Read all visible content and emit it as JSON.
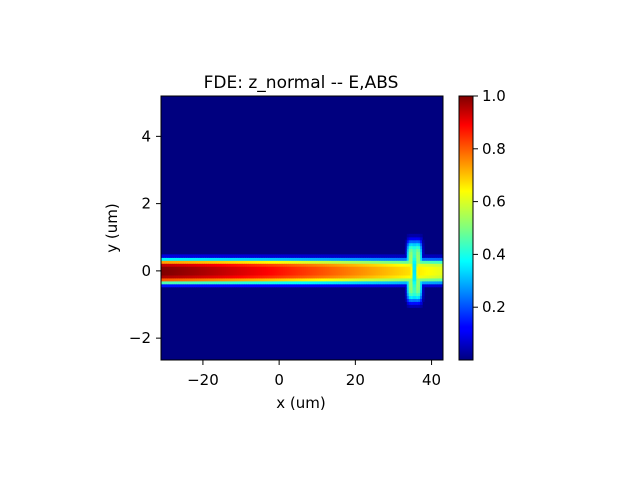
{
  "chart_data": {
    "type": "heatmap",
    "title": "FDE: z_normal -- E,ABS",
    "xlabel": "x (um)",
    "ylabel": "y (um)",
    "xlim": [
      -31,
      43
    ],
    "ylim": [
      -2.65,
      5.2
    ],
    "xticks": [
      -20,
      0,
      20,
      40
    ],
    "yticks": [
      -2,
      0,
      2,
      4
    ],
    "xtick_labels": [
      "−20",
      "0",
      "20",
      "40"
    ],
    "ytick_labels": [
      "−2",
      "0",
      "2",
      "4"
    ],
    "colorbar": {
      "range": [
        0.0,
        1.0
      ],
      "ticks": [
        0.2,
        0.4,
        0.6,
        0.8,
        1.0
      ],
      "tick_labels": [
        "0.2",
        "0.4",
        "0.6",
        "0.8",
        "1.0"
      ],
      "colormap": "jet"
    },
    "field": {
      "waveguide_center_y": 0.0,
      "waveguide_half_width": 0.35,
      "peak_value": 1.0,
      "decay_end_x": 43,
      "decay_end_value": 0.6,
      "crossing_feature": {
        "x_center": 35.5,
        "x_half_span": 2.2,
        "y_half_span": 0.9
      }
    },
    "background_color": "#00007f"
  }
}
